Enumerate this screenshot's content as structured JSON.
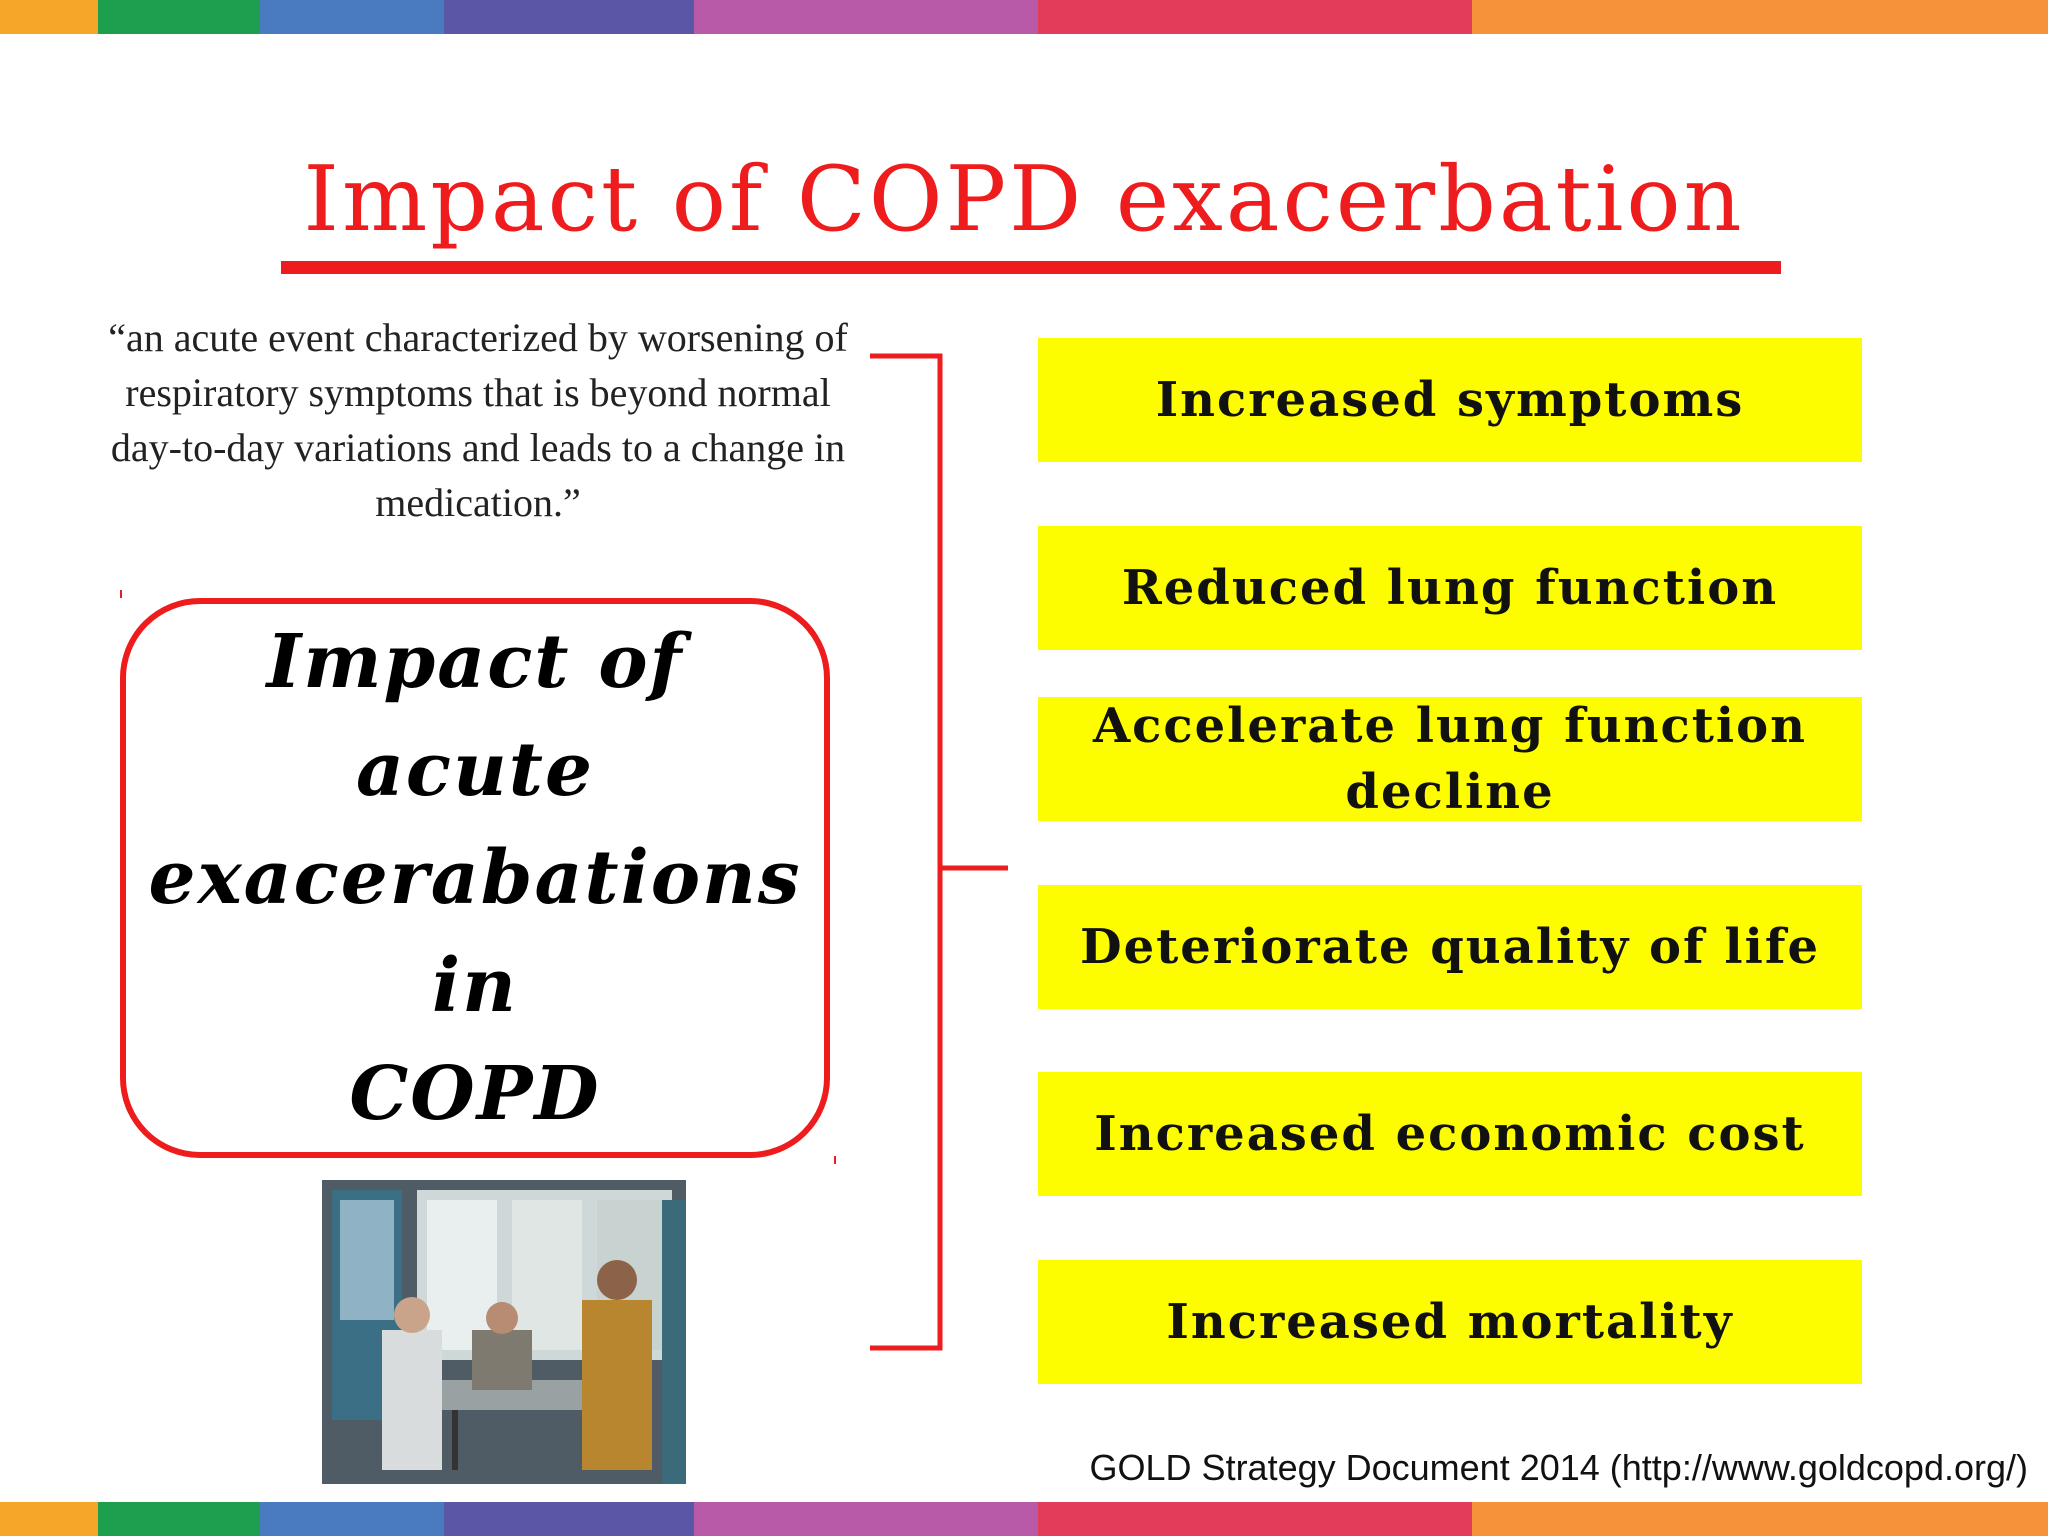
{
  "slide": {
    "title": "Impact of COPD exacerbation",
    "definition_quote": "“an acute event characterized by worsening of respiratory symptoms that is beyond normal day-to-day variations and leads to a change in medication.”",
    "impact_box": {
      "lines": [
        "Impact of",
        "acute",
        "exacerabations in",
        "COPD"
      ]
    },
    "impacts": [
      {
        "label": "Increased symptoms"
      },
      {
        "label": "Reduced lung function"
      },
      {
        "label": "Accelerate lung function decline"
      },
      {
        "label": "Deteriorate quality of life"
      },
      {
        "label": "Increased economic cost"
      },
      {
        "label": "Increased mortality"
      }
    ],
    "source": "GOLD Strategy Document 2014 (http://www.goldcopd.org/)",
    "photo": {
      "icon": "hospital-scene-photo"
    }
  },
  "colors": {
    "accent_red": "#ee1c1c",
    "item_yellow": "#fdfd00",
    "stripe": [
      "#f5a828",
      "#1e9e4f",
      "#4a7bc0",
      "#5b56a6",
      "#b85aa8",
      "#e23c5a",
      "#f5923a"
    ]
  }
}
